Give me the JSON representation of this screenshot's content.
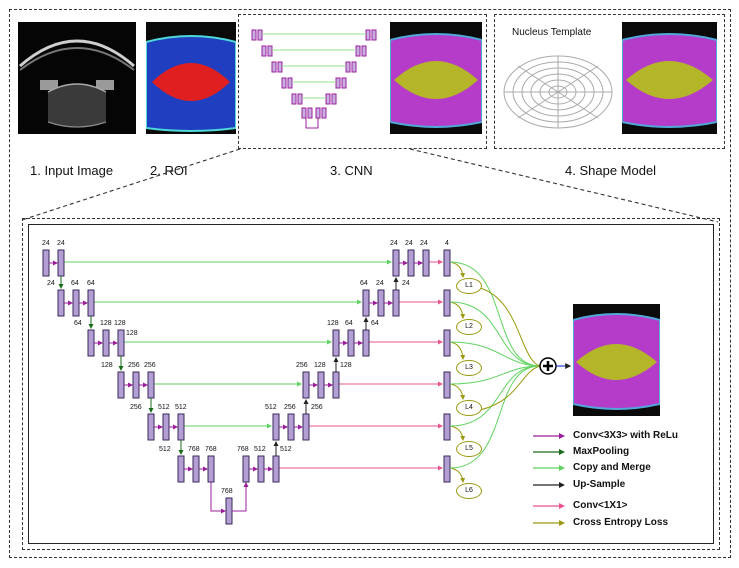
{
  "steps": [
    {
      "label": "1. Input  Image"
    },
    {
      "label": "2. ROI"
    },
    {
      "label": "3. CNN"
    },
    {
      "label": "4. Shape Model"
    }
  ],
  "nucleus_template_label": "Nucleus Template",
  "unet": {
    "top_labels": {
      "r1_left": [
        "24",
        "24"
      ],
      "r1_right": [
        "24",
        "24",
        "24",
        "4"
      ],
      "r2_left": [
        "24",
        "64",
        "64"
      ],
      "r2_right": [
        "64",
        "24",
        "24"
      ],
      "r3_left": [
        "64",
        "128",
        "128",
        "128"
      ],
      "r3_right": [
        "128",
        "64",
        "64"
      ],
      "r4_left": [
        "128",
        "256",
        "256"
      ],
      "r4_right": [
        "256",
        "128",
        "128"
      ],
      "r5_left": [
        "256",
        "512",
        "512"
      ],
      "r5_right": [
        "512",
        "256",
        "256"
      ],
      "r6_left": [
        "512",
        "768",
        "768"
      ],
      "r6_right": [
        "768",
        "512",
        "512"
      ],
      "bottom": "768"
    },
    "loss_nodes": [
      "L1",
      "L2",
      "L3",
      "L4",
      "L5",
      "L6"
    ]
  },
  "legend": [
    {
      "label": "Conv<3X3> with ReLu",
      "color": "#9b1f9b"
    },
    {
      "label": "MaxPooling",
      "color": "#1a6b1a"
    },
    {
      "label": "Copy and Merge",
      "color": "#5fd35f"
    },
    {
      "label": "Up-Sample",
      "color": "#222222"
    },
    {
      "label": "Conv<1X1>",
      "color": "#e8558f"
    },
    {
      "label": "Cross Entropy Loss",
      "color": "#9a9a10"
    }
  ],
  "colors": {
    "block_fill": "#b49fd4",
    "block_stroke": "#3a2a5a",
    "roi_blue": "#1f3fc0",
    "roi_red": "#e02020",
    "seg_magenta": "#b43cc8",
    "seg_yellow": "#b5b52a"
  }
}
